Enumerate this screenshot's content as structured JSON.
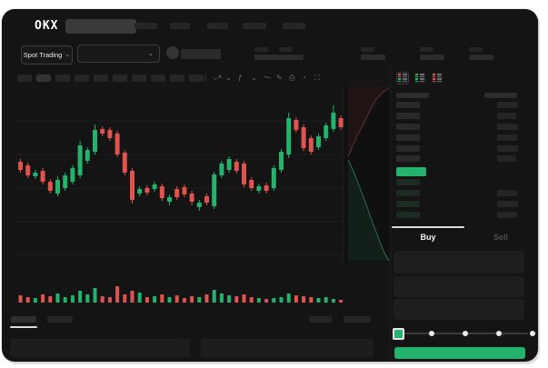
{
  "logo": {
    "text": "OKX"
  },
  "header": {
    "search_placeholder": "",
    "nav_placeholder_count": 5
  },
  "market_selector": {
    "label": "Spot Trading",
    "chevron": "⌄"
  },
  "pair_selector": {
    "chevron": "⌄"
  },
  "ticker_stats_placeholder_count": 5,
  "chart_toolbar": {
    "timeframe_count": 10,
    "active_timeframe_index": 1,
    "icons": [
      {
        "name": "compare-icon",
        "glyph": "⌵ᴬ"
      },
      {
        "name": "chevron-down-icon",
        "glyph": "⌄"
      },
      {
        "name": "indicators-icon",
        "glyph": "ƒ"
      },
      {
        "name": "chevron-down-icon",
        "glyph": "⌄"
      },
      {
        "name": "line-type-icon",
        "glyph": "〜"
      },
      {
        "name": "draw-icon",
        "glyph": "✎"
      },
      {
        "name": "screenshot-icon",
        "glyph": "⎙"
      },
      {
        "name": "history-icon",
        "glyph": "◔"
      },
      {
        "name": "fullscreen-icon",
        "glyph": "⛶"
      }
    ]
  },
  "colors": {
    "green": "#25b26d",
    "red": "#e0534e",
    "window_bg": "#141414",
    "depth_bg": "#101010",
    "placeholder": "#262626",
    "bid_tint": "#1d2b22",
    "grid": "#1e1e1e"
  },
  "chart_data": {
    "type": "candlestick",
    "title": "",
    "xlabel": "",
    "ylabel": "",
    "grid": true,
    "legend": false,
    "candles": [
      {
        "o": 112,
        "h": 115,
        "l": 100,
        "c": 103
      },
      {
        "o": 108,
        "h": 111,
        "l": 94,
        "c": 97
      },
      {
        "o": 96,
        "h": 103,
        "l": 93,
        "c": 100
      },
      {
        "o": 102,
        "h": 105,
        "l": 87,
        "c": 90
      },
      {
        "o": 90,
        "h": 93,
        "l": 77,
        "c": 80
      },
      {
        "o": 77,
        "h": 96,
        "l": 74,
        "c": 92
      },
      {
        "o": 83,
        "h": 100,
        "l": 80,
        "c": 97
      },
      {
        "o": 90,
        "h": 108,
        "l": 87,
        "c": 105
      },
      {
        "o": 97,
        "h": 135,
        "l": 94,
        "c": 130
      },
      {
        "o": 113,
        "h": 128,
        "l": 110,
        "c": 125
      },
      {
        "o": 123,
        "h": 153,
        "l": 120,
        "c": 147
      },
      {
        "o": 148,
        "h": 151,
        "l": 140,
        "c": 143
      },
      {
        "o": 147,
        "h": 150,
        "l": 135,
        "c": 138
      },
      {
        "o": 143,
        "h": 146,
        "l": 117,
        "c": 120
      },
      {
        "o": 122,
        "h": 125,
        "l": 97,
        "c": 100
      },
      {
        "o": 102,
        "h": 105,
        "l": 66,
        "c": 70
      },
      {
        "o": 77,
        "h": 85,
        "l": 74,
        "c": 82
      },
      {
        "o": 83,
        "h": 86,
        "l": 75,
        "c": 78
      },
      {
        "o": 82,
        "h": 90,
        "l": 79,
        "c": 87
      },
      {
        "o": 85,
        "h": 88,
        "l": 69,
        "c": 72
      },
      {
        "o": 68,
        "h": 76,
        "l": 64,
        "c": 73
      },
      {
        "o": 82,
        "h": 85,
        "l": 70,
        "c": 73
      },
      {
        "o": 84,
        "h": 87,
        "l": 73,
        "c": 76
      },
      {
        "o": 77,
        "h": 80,
        "l": 64,
        "c": 68
      },
      {
        "o": 62,
        "h": 70,
        "l": 58,
        "c": 67
      },
      {
        "o": 74,
        "h": 77,
        "l": 64,
        "c": 67
      },
      {
        "o": 63,
        "h": 101,
        "l": 60,
        "c": 98
      },
      {
        "o": 97,
        "h": 113,
        "l": 94,
        "c": 110
      },
      {
        "o": 103,
        "h": 118,
        "l": 100,
        "c": 115
      },
      {
        "o": 112,
        "h": 115,
        "l": 99,
        "c": 102
      },
      {
        "o": 110,
        "h": 113,
        "l": 84,
        "c": 87
      },
      {
        "o": 92,
        "h": 95,
        "l": 80,
        "c": 83
      },
      {
        "o": 80,
        "h": 88,
        "l": 77,
        "c": 85
      },
      {
        "o": 86,
        "h": 89,
        "l": 77,
        "c": 80
      },
      {
        "o": 83,
        "h": 108,
        "l": 80,
        "c": 105
      },
      {
        "o": 103,
        "h": 126,
        "l": 100,
        "c": 123
      },
      {
        "o": 120,
        "h": 166,
        "l": 116,
        "c": 160
      },
      {
        "o": 158,
        "h": 161,
        "l": 144,
        "c": 147
      },
      {
        "o": 150,
        "h": 153,
        "l": 124,
        "c": 127
      },
      {
        "o": 138,
        "h": 141,
        "l": 120,
        "c": 123
      },
      {
        "o": 128,
        "h": 143,
        "l": 125,
        "c": 140
      },
      {
        "o": 138,
        "h": 155,
        "l": 135,
        "c": 152
      },
      {
        "o": 148,
        "h": 174,
        "l": 145,
        "c": 166
      },
      {
        "o": 160,
        "h": 163,
        "l": 147,
        "c": 150
      }
    ],
    "volumes": [
      8,
      6,
      5,
      9,
      7,
      10,
      6,
      8,
      13,
      9,
      16,
      7,
      6,
      18,
      9,
      13,
      11,
      6,
      7,
      9,
      6,
      8,
      5,
      7,
      6,
      9,
      14,
      10,
      8,
      7,
      9,
      6,
      5,
      4,
      5,
      6,
      10,
      8,
      7,
      6,
      5,
      6,
      4,
      3
    ],
    "depth": {
      "asks_line": [
        [
          371,
          80
        ],
        [
          374,
          74
        ],
        [
          376,
          68
        ],
        [
          379,
          63
        ],
        [
          381,
          57
        ],
        [
          384,
          52
        ],
        [
          387,
          46
        ],
        [
          390,
          40
        ],
        [
          393,
          34
        ],
        [
          396,
          28
        ],
        [
          399,
          22
        ],
        [
          402,
          17
        ],
        [
          406,
          13
        ],
        [
          410,
          9
        ],
        [
          413,
          7
        ],
        [
          416,
          5
        ]
      ],
      "bids_line": [
        [
          371,
          84
        ],
        [
          374,
          90
        ],
        [
          377,
          97
        ],
        [
          380,
          104
        ],
        [
          383,
          112
        ],
        [
          386,
          120
        ],
        [
          389,
          128
        ],
        [
          392,
          136
        ],
        [
          395,
          145
        ],
        [
          398,
          153
        ],
        [
          401,
          161
        ],
        [
          404,
          169
        ],
        [
          407,
          177
        ],
        [
          410,
          184
        ],
        [
          413,
          190
        ],
        [
          416,
          195
        ]
      ]
    }
  },
  "order_book": {
    "view_icons": [
      {
        "name": "book-both-icon",
        "pattern": [
          "red",
          "red",
          "green",
          "green"
        ],
        "active": true
      },
      {
        "name": "book-bids-icon",
        "pattern": [
          "green",
          "green",
          "green",
          "green"
        ],
        "active": false
      },
      {
        "name": "book-asks-icon",
        "pattern": [
          "red",
          "red",
          "red",
          "red"
        ],
        "active": false
      }
    ],
    "asks": [
      {
        "aw": 23
      },
      {
        "aw": 21
      },
      {
        "aw": 23
      },
      {
        "aw": 22
      },
      {
        "aw": 23
      },
      {
        "aw": 21
      }
    ],
    "last_price_pill": {
      "color": "#25b26d"
    },
    "bids": [
      {
        "aw": 0
      },
      {
        "aw": 22
      },
      {
        "aw": 23
      },
      {
        "aw": 22
      }
    ]
  },
  "trade_panel": {
    "tabs": [
      {
        "label": "Buy",
        "active": true
      },
      {
        "label": "Sell",
        "active": false
      }
    ],
    "field_count": 3,
    "slider": {
      "stops": 5,
      "active_stop": 0
    },
    "submit_color": "#25b26d"
  },
  "chart_footer": {
    "tab_count": 2,
    "right_item_count": 2,
    "active_tab": 0
  }
}
